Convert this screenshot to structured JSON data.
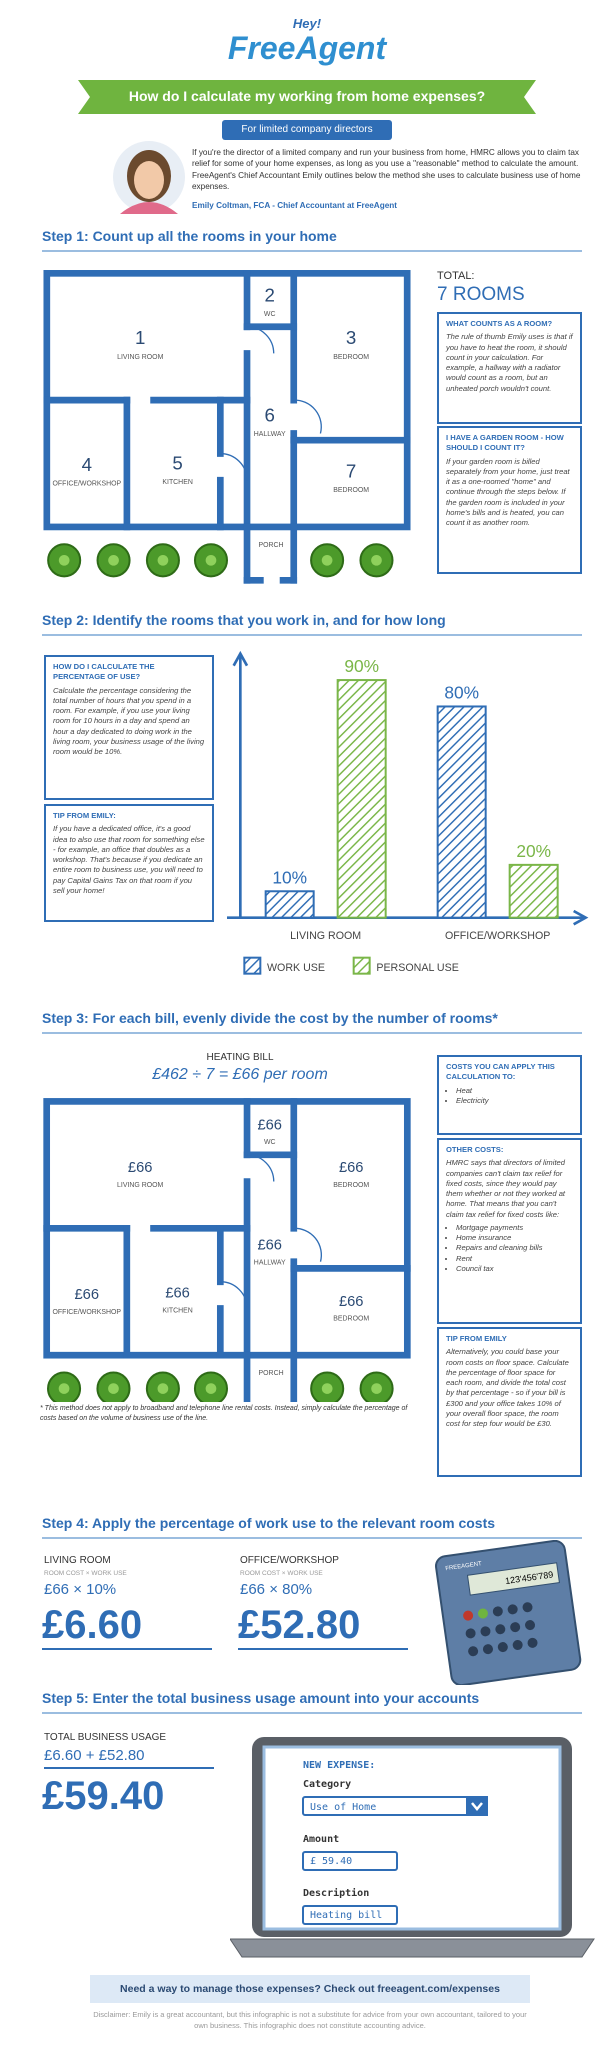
{
  "header": {
    "hey": "Hey!",
    "logo": "FreeAgent",
    "title": "How do I calculate my working from home expenses?",
    "subtitle": "For limited company directors"
  },
  "intro": {
    "text": "If you're the director of a limited company and run your business from home, HMRC allows you to claim tax relief for some of your home expenses, as long as you use a \"reasonable\" method to calculate the amount. FreeAgent's Chief Accountant Emily outlines below the method she uses to calculate business use of home expenses.",
    "byline": "Emily Coltman, FCA - Chief Accountant at FreeAgent"
  },
  "step1": {
    "heading": "Step 1: Count up all the rooms in your home",
    "rooms": [
      {
        "number": "1",
        "name": "LIVING ROOM"
      },
      {
        "number": "2",
        "name": "WC"
      },
      {
        "number": "3",
        "name": "BEDROOM"
      },
      {
        "number": "4",
        "name": "OFFICE/WORKSHOP"
      },
      {
        "number": "5",
        "name": "KITCHEN"
      },
      {
        "number": "6",
        "name": "HALLWAY"
      },
      {
        "number": "7",
        "name": "BEDROOM"
      }
    ],
    "porch": "PORCH",
    "total_label": "TOTAL:",
    "total": "7 ROOMS",
    "boxes": [
      {
        "title": "WHAT COUNTS AS A ROOM?",
        "text": "The rule of thumb Emily uses is that if you have to heat the room, it should count in your calculation. For example, a hallway with a radiator would count as a room, but an unheated porch wouldn't count."
      },
      {
        "title": "I HAVE A GARDEN ROOM - HOW SHOULD I COUNT IT?",
        "text": "If your garden room is billed separately from your home, just treat it as a one-roomed \"home\" and continue through the steps below. If the garden room is included in your home's bills and is heated, you can count it as another room."
      }
    ]
  },
  "step2": {
    "heading": "Step 2: Identify the rooms that you work in, and for how long",
    "boxes": [
      {
        "title": "HOW DO I CALCULATE THE PERCENTAGE OF USE?",
        "text": "Calculate the percentage considering the total number of hours that you spend in a room. For example, if you use your living room for 10 hours in a day and spend an hour a day dedicated to doing work in the living room, your business usage of the living room would be 10%."
      },
      {
        "title": "TIP FROM EMILY:",
        "text": "If you have a dedicated office, it's a good idea to also use that room for something else - for example, an office that doubles as a workshop. That's because if you dedicate an entire room to business use, you will need to pay Capital Gains Tax on that room if you sell your home!"
      }
    ],
    "chart": {
      "type": "bar",
      "categories": [
        "LIVING ROOM",
        "OFFICE/WORKSHOP"
      ],
      "series": [
        {
          "name": "WORK USE",
          "color": "#2f6db5",
          "values": [
            10,
            80
          ],
          "value_labels": [
            "10%",
            "80%"
          ]
        },
        {
          "name": "PERSONAL USE",
          "color": "#7ab648",
          "values": [
            90,
            20
          ],
          "value_labels": [
            "90%",
            "20%"
          ]
        }
      ],
      "ylim": [
        0,
        100
      ]
    }
  },
  "step3": {
    "heading": "Step 3: For each bill, evenly divide the cost by the number of rooms*",
    "bill_label": "HEATING BILL",
    "bill_calc": "£462 ÷ 7 = £66 per room",
    "rooms": [
      {
        "amount": "£66",
        "name": "LIVING ROOM"
      },
      {
        "amount": "£66",
        "name": "WC"
      },
      {
        "amount": "£66",
        "name": "BEDROOM"
      },
      {
        "amount": "£66",
        "name": "OFFICE/WORKSHOP"
      },
      {
        "amount": "£66",
        "name": "KITCHEN"
      },
      {
        "amount": "£66",
        "name": "HALLWAY"
      },
      {
        "amount": "£66",
        "name": "BEDROOM"
      }
    ],
    "porch": "PORCH",
    "footnote": "* This method does not apply to broadband and telephone line rental costs. Instead, simply calculate the percentage of costs based on the volume of business use of the line.",
    "boxes": [
      {
        "title": "COSTS YOU CAN APPLY THIS CALCULATION TO:",
        "items": [
          "Heat",
          "Electricity"
        ]
      },
      {
        "title": "OTHER COSTS:",
        "text": "HMRC says that directors of limited companies can't claim tax relief for fixed costs, since they would pay them whether or not they worked at home. That means that you can't claim tax relief for fixed costs like:",
        "items": [
          "Mortgage payments",
          "Home insurance",
          "Repairs and cleaning bills",
          "Rent",
          "Council tax"
        ]
      },
      {
        "title": "TIP FROM EMILY",
        "text": "Alternatively, you could base your room costs on floor space. Calculate the percentage of floor space for each room, and divide the total cost by that percentage - so if your bill is £300 and your office takes 10% of your overall floor space, the room cost for step four would be £30."
      }
    ]
  },
  "step4": {
    "heading": "Step 4: Apply the percentage of work use to the relevant room costs",
    "items": [
      {
        "room": "LIVING ROOM",
        "formula_label": "ROOM COST × WORK USE",
        "formula": "£66 × 10%",
        "result": "£6.60"
      },
      {
        "room": "OFFICE/WORKSHOP",
        "formula_label": "ROOM COST × WORK USE",
        "formula": "£66 × 80%",
        "result": "£52.80"
      }
    ],
    "calculator": {
      "brand": "FREEAGENT",
      "display": "123'456'789"
    }
  },
  "step5": {
    "heading": "Step 5: Enter the total business usage amount into your accounts",
    "total_label": "TOTAL BUSINESS USAGE",
    "formula": "£6.60 + £52.80",
    "result": "£59.40",
    "form": {
      "title": "NEW EXPENSE:",
      "category_label": "Category",
      "category": "Use of Home",
      "amount_label": "Amount",
      "amount": "£ 59.40",
      "description_label": "Description",
      "description": "Heating bill"
    }
  },
  "footer": {
    "cta": "Need a way to manage those expenses? Check out freeagent.com/expenses",
    "disclaimer": "Disclaimer: Emily is a great accountant, but this infographic is not a substitute for advice from your own accountant, tailored to your own business. This infographic does not constitute accounting advice."
  }
}
